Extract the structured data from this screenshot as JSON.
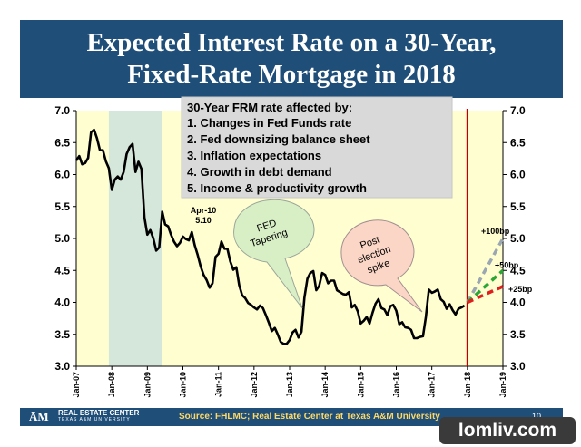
{
  "title": {
    "line1": "Expected Interest Rate on a 30-Year,",
    "line2": "Fixed-Rate Mortgage in 2018"
  },
  "notes": {
    "heading": "30-Year FRM rate affected by:",
    "items": [
      "1.   Changes in Fed Funds rate",
      "2.   Fed downsizing balance sheet",
      "3.   Inflation expectations",
      "4.   Growth in debt demand",
      "5.   Income & productivity growth"
    ]
  },
  "annotations": {
    "apr10_label": "Apr-10",
    "apr10_value": "5.10",
    "fed_bubble": [
      "FED",
      "Tapering"
    ],
    "post_bubble": [
      "Post",
      "election",
      "spike"
    ]
  },
  "footer": {
    "logo": "ĀM",
    "org": "REAL ESTATE CENTER",
    "org_sub": "TEXAS A&M UNIVERSITY",
    "source": "Source: FHLMC; Real Estate Center at Texas A&M University",
    "page": "10"
  },
  "watermark": "lomliv.com",
  "colors": {
    "title_bg": "#1f4e79",
    "plot_bg": "#fffed0",
    "recession": "#d5e6da",
    "series": "#000000",
    "vline": "#c00000",
    "plus100": "#9aa7b2",
    "plus50": "#2aa635",
    "plus25": "#e01e1e"
  },
  "chart_data": {
    "type": "line",
    "ylim": [
      3.0,
      7.0
    ],
    "yticks": [
      3.0,
      3.5,
      4.0,
      4.5,
      5.0,
      5.5,
      6.0,
      6.5,
      7.0
    ],
    "yticklabels": [
      "3.0",
      "3.5",
      "4.0",
      "4.5",
      "5.0",
      "5.5",
      "6.0",
      "6.5",
      "7.0"
    ],
    "xticks": [
      "Jan-07",
      "Jan-08",
      "Jan-09",
      "Jan-10",
      "Jan-11",
      "Jan-12",
      "Jan-13",
      "Jan-14",
      "Jan-15",
      "Jan-16",
      "Jan-17",
      "Jan-18",
      "Jan-19"
    ],
    "xlim": [
      "2007-01",
      "2019-01"
    ],
    "recession": [
      "2007-12",
      "2009-06"
    ],
    "vline_at": "2018-01",
    "series": [
      {
        "x": [
          "2007-01",
          "2007-02",
          "2007-03",
          "2007-04",
          "2007-05",
          "2007-06",
          "2007-07",
          "2007-08",
          "2007-09",
          "2007-10",
          "2007-11",
          "2007-12",
          "2008-01",
          "2008-02",
          "2008-03",
          "2008-04",
          "2008-05",
          "2008-06",
          "2008-07",
          "2008-08",
          "2008-09",
          "2008-10",
          "2008-11",
          "2008-12",
          "2009-01",
          "2009-02",
          "2009-03",
          "2009-04",
          "2009-05",
          "2009-06",
          "2009-07",
          "2009-08",
          "2009-09",
          "2009-10",
          "2009-11",
          "2009-12",
          "2010-01",
          "2010-02",
          "2010-03",
          "2010-04",
          "2010-05",
          "2010-06",
          "2010-07",
          "2010-08",
          "2010-09",
          "2010-10",
          "2010-11",
          "2010-12",
          "2011-01",
          "2011-02",
          "2011-03",
          "2011-04",
          "2011-05",
          "2011-06",
          "2011-07",
          "2011-08",
          "2011-09",
          "2011-10",
          "2011-11",
          "2011-12",
          "2012-01",
          "2012-02",
          "2012-03",
          "2012-04",
          "2012-05",
          "2012-06",
          "2012-07",
          "2012-08",
          "2012-09",
          "2012-10",
          "2012-11",
          "2012-12",
          "2013-01",
          "2013-02",
          "2013-03",
          "2013-04",
          "2013-05",
          "2013-06",
          "2013-07",
          "2013-08",
          "2013-09",
          "2013-10",
          "2013-11",
          "2013-12",
          "2014-01",
          "2014-02",
          "2014-03",
          "2014-04",
          "2014-05",
          "2014-06",
          "2014-07",
          "2014-08",
          "2014-09",
          "2014-10",
          "2014-11",
          "2014-12",
          "2015-01",
          "2015-02",
          "2015-03",
          "2015-04",
          "2015-05",
          "2015-06",
          "2015-07",
          "2015-08",
          "2015-09",
          "2015-10",
          "2015-11",
          "2015-12",
          "2016-01",
          "2016-02",
          "2016-03",
          "2016-04",
          "2016-05",
          "2016-06",
          "2016-07",
          "2016-08",
          "2016-09",
          "2016-10",
          "2016-11",
          "2016-12",
          "2017-01",
          "2017-02",
          "2017-03",
          "2017-04",
          "2017-05",
          "2017-06",
          "2017-07",
          "2017-08",
          "2017-09",
          "2017-10",
          "2017-11",
          "2017-12"
        ],
        "values": [
          6.22,
          6.29,
          6.16,
          6.18,
          6.26,
          6.66,
          6.7,
          6.57,
          6.38,
          6.38,
          6.21,
          6.1,
          5.76,
          5.92,
          5.97,
          5.92,
          6.04,
          6.32,
          6.43,
          6.48,
          6.04,
          6.2,
          6.09,
          5.33,
          5.06,
          5.13,
          5.0,
          4.81,
          4.86,
          5.42,
          5.22,
          5.19,
          5.06,
          4.95,
          4.88,
          4.93,
          5.03,
          4.99,
          4.97,
          5.1,
          4.89,
          4.74,
          4.56,
          4.43,
          4.35,
          4.23,
          4.3,
          4.71,
          4.76,
          4.95,
          4.84,
          4.84,
          4.64,
          4.51,
          4.55,
          4.27,
          4.11,
          4.07,
          3.99,
          3.96,
          3.92,
          3.89,
          3.95,
          3.91,
          3.8,
          3.68,
          3.55,
          3.6,
          3.5,
          3.38,
          3.35,
          3.35,
          3.41,
          3.53,
          3.57,
          3.45,
          3.54,
          4.07,
          4.37,
          4.46,
          4.49,
          4.19,
          4.26,
          4.46,
          4.43,
          4.3,
          4.34,
          4.34,
          4.19,
          4.16,
          4.13,
          4.12,
          4.16,
          3.92,
          3.96,
          3.86,
          3.67,
          3.71,
          3.77,
          3.67,
          3.84,
          3.98,
          4.05,
          3.91,
          3.89,
          3.8,
          3.94,
          3.96,
          3.87,
          3.66,
          3.69,
          3.61,
          3.6,
          3.57,
          3.44,
          3.44,
          3.46,
          3.47,
          3.77,
          4.2,
          4.15,
          4.17,
          4.2,
          4.05,
          4.01,
          3.9,
          3.97,
          3.88,
          3.81,
          3.9,
          3.92,
          3.95
        ]
      }
    ],
    "projections": [
      {
        "name": "+100bp",
        "from": 4.0,
        "to": 5.0
      },
      {
        "name": "+50bp",
        "from": 4.0,
        "to": 4.5
      },
      {
        "name": "+25bp",
        "from": 4.0,
        "to": 4.25
      }
    ]
  }
}
